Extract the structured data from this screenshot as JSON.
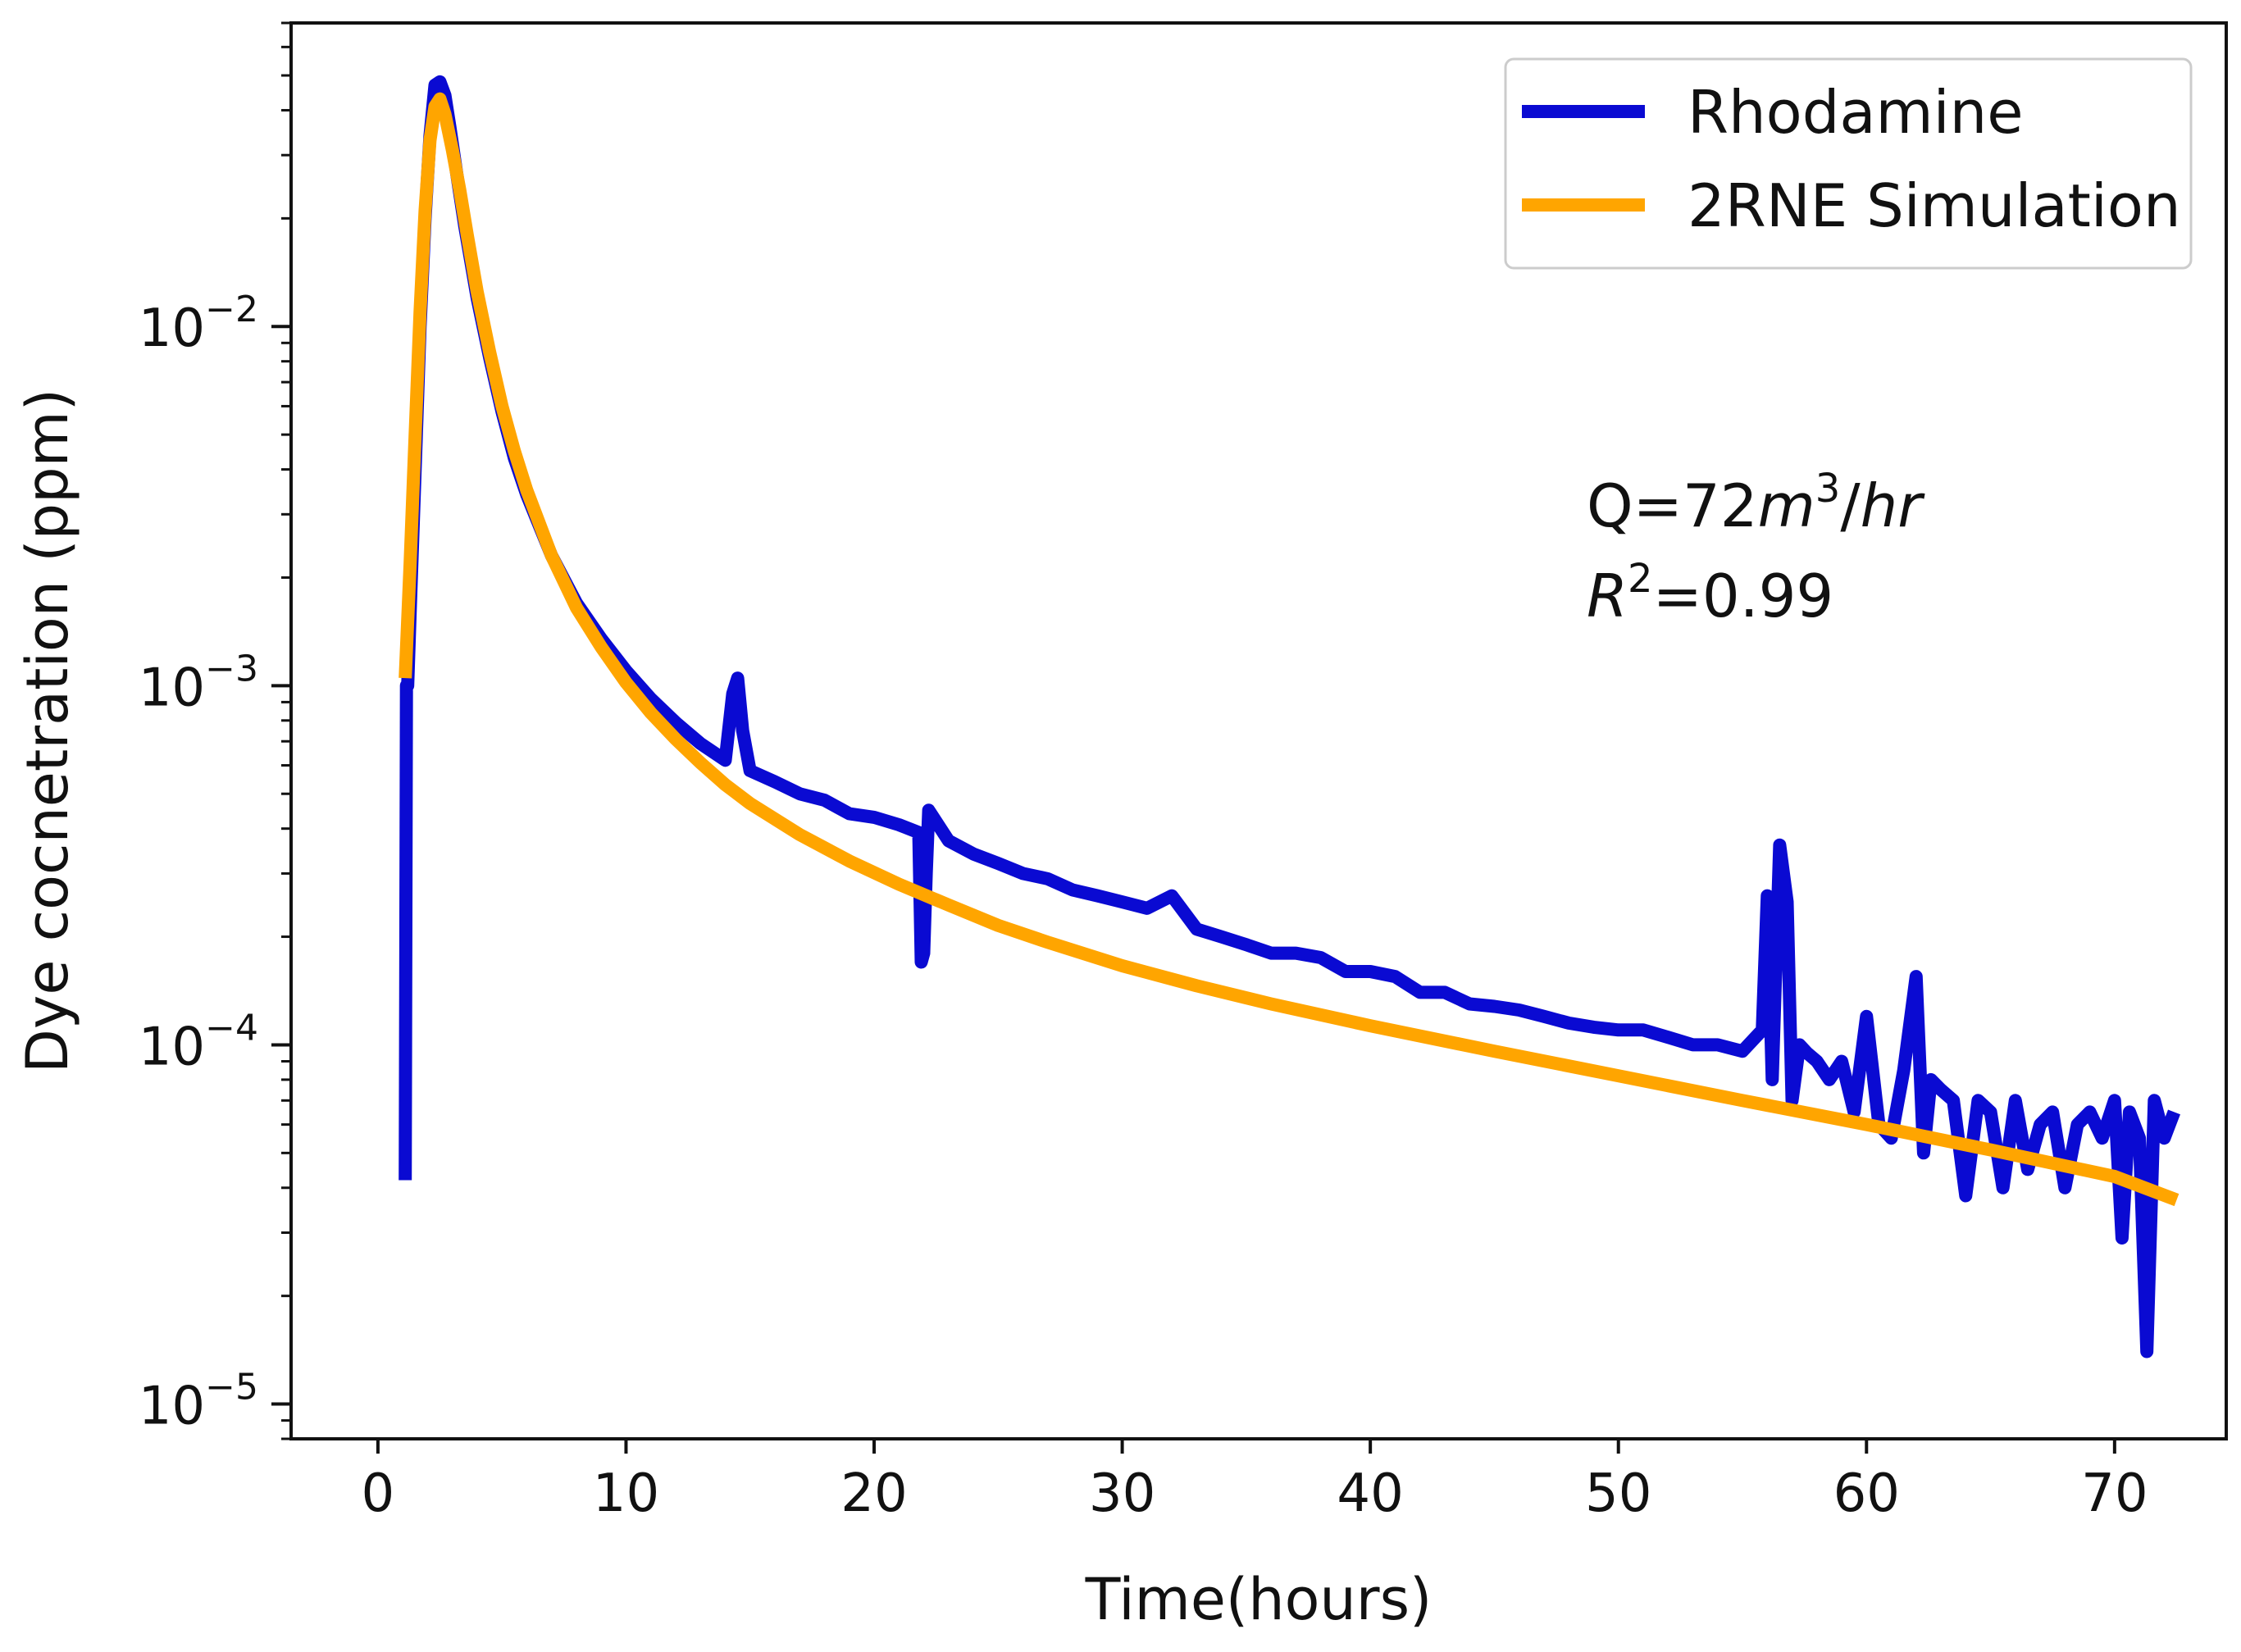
{
  "chart_data": {
    "type": "line",
    "title": "",
    "xlabel": "Time(hours)",
    "ylabel": "Dye cocnetration (ppm)",
    "xlim": [
      -3.5,
      74.5
    ],
    "ylim": [
      8e-06,
      0.07
    ],
    "yscale": "log",
    "xticks": [
      0,
      10,
      20,
      30,
      40,
      50,
      60,
      70
    ],
    "xtick_labels": [
      "0",
      "10",
      "20",
      "30",
      "40",
      "50",
      "60",
      "70"
    ],
    "yticks": [
      1e-05,
      0.0001,
      0.001,
      0.01
    ],
    "ytick_labels": [
      {
        "base": "10",
        "exp": "−5"
      },
      {
        "base": "10",
        "exp": "−4"
      },
      {
        "base": "10",
        "exp": "−3"
      },
      {
        "base": "10",
        "exp": "−2"
      }
    ],
    "legend_position": "upper right",
    "series": [
      {
        "name": "Rhodamine",
        "color": "#0a0ad2",
        "x": [
          1.1,
          1.15,
          1.2,
          1.3,
          1.5,
          1.7,
          1.9,
          2.1,
          2.3,
          2.5,
          2.7,
          2.9,
          3.2,
          3.5,
          4,
          4.5,
          5,
          5.5,
          6,
          7,
          8,
          9,
          10,
          11,
          12,
          13,
          14,
          14.3,
          14.5,
          14.7,
          15,
          16,
          17,
          18,
          19,
          20,
          21,
          21.8,
          21.9,
          22.0,
          22.1,
          22.2,
          23,
          24,
          25,
          26,
          27,
          28,
          29,
          30,
          31,
          32,
          33,
          34,
          35,
          36,
          37,
          38,
          39,
          40,
          41,
          42,
          43,
          44,
          45,
          46,
          47,
          48,
          49,
          50,
          51,
          52,
          53,
          54,
          55,
          55.8,
          56.0,
          56.2,
          56.5,
          56.8,
          57.0,
          57.3,
          57.6,
          58,
          58.5,
          59,
          59.5,
          60,
          60.5,
          61,
          61.5,
          62,
          62.3,
          62.6,
          63,
          63.5,
          64,
          64.5,
          65,
          65.5,
          66,
          66.5,
          67,
          67.5,
          68,
          68.5,
          69,
          69.5,
          70,
          70.3,
          70.6,
          71.0,
          71.3,
          71.6,
          72.0,
          72.4
        ],
        "y": [
          4.2e-05,
          0.001,
          0.001,
          0.0016,
          0.004,
          0.01,
          0.02,
          0.034,
          0.047,
          0.048,
          0.044,
          0.036,
          0.026,
          0.019,
          0.012,
          0.0082,
          0.0058,
          0.0043,
          0.0034,
          0.0023,
          0.0017,
          0.00135,
          0.0011,
          0.00092,
          0.00079,
          0.00069,
          0.00062,
          0.00095,
          0.00105,
          0.00075,
          0.00058,
          0.00054,
          0.0005,
          0.00048,
          0.00044,
          0.00043,
          0.00041,
          0.00039,
          0.00017,
          0.00018,
          0.0003,
          0.00045,
          0.00037,
          0.00034,
          0.00032,
          0.0003,
          0.00029,
          0.00027,
          0.00026,
          0.00025,
          0.00024,
          0.00026,
          0.00021,
          0.0002,
          0.00019,
          0.00018,
          0.00018,
          0.000175,
          0.00016,
          0.00016,
          0.000155,
          0.00014,
          0.00014,
          0.00013,
          0.000128,
          0.000125,
          0.00012,
          0.000115,
          0.000112,
          0.00011,
          0.00011,
          0.000105,
          0.0001,
          0.0001,
          9.6e-05,
          0.00011,
          0.00026,
          8e-05,
          0.00036,
          0.00025,
          7e-05,
          0.0001,
          9.5e-05,
          9e-05,
          8e-05,
          9e-05,
          6.5e-05,
          0.00012,
          6e-05,
          5.5e-05,
          8.5e-05,
          0.000155,
          5e-05,
          8e-05,
          7.5e-05,
          7e-05,
          3.8e-05,
          7e-05,
          6.5e-05,
          4e-05,
          7e-05,
          4.5e-05,
          6e-05,
          6.5e-05,
          4e-05,
          6e-05,
          6.5e-05,
          5.5e-05,
          7e-05,
          2.9e-05,
          6.5e-05,
          5.5e-05,
          1.4e-05,
          7e-05,
          5.5e-05,
          6.5e-05
        ]
      },
      {
        "name": "2RNE Simulation",
        "color": "#ffa500",
        "x": [
          1.1,
          1.3,
          1.5,
          1.7,
          1.9,
          2.1,
          2.3,
          2.5,
          2.7,
          3.0,
          3.3,
          3.6,
          4,
          4.5,
          5,
          5.5,
          6,
          7,
          8,
          9,
          10,
          11,
          12,
          13,
          14,
          15,
          17,
          19,
          21,
          23,
          25,
          27,
          30,
          33,
          36,
          40,
          45,
          50,
          55,
          60,
          65,
          70,
          72.5
        ],
        "y": [
          0.00105,
          0.0022,
          0.005,
          0.011,
          0.021,
          0.033,
          0.041,
          0.043,
          0.039,
          0.031,
          0.024,
          0.018,
          0.0125,
          0.0085,
          0.006,
          0.0045,
          0.0035,
          0.0023,
          0.00165,
          0.00128,
          0.00102,
          0.00084,
          0.00071,
          0.00061,
          0.00053,
          0.00047,
          0.000385,
          0.000325,
          0.00028,
          0.000245,
          0.000215,
          0.000193,
          0.000166,
          0.000146,
          0.00013,
          0.000113,
          9.6e-05,
          8.2e-05,
          7e-05,
          6e-05,
          5.1e-05,
          4.3e-05,
          3.7e-05
        ]
      }
    ],
    "annotations": [
      {
        "parts": [
          {
            "text": "Q=72",
            "style": "normal"
          },
          {
            "text": "m",
            "style": "italic"
          },
          {
            "text": "3",
            "style": "sup"
          },
          {
            "text": "/",
            "style": "normal"
          },
          {
            "text": "hr",
            "style": "italic"
          }
        ]
      },
      {
        "parts": [
          {
            "text": "R",
            "style": "italic"
          },
          {
            "text": "2",
            "style": "sup"
          },
          {
            "text": "=0.99",
            "style": "normal"
          }
        ]
      }
    ]
  }
}
